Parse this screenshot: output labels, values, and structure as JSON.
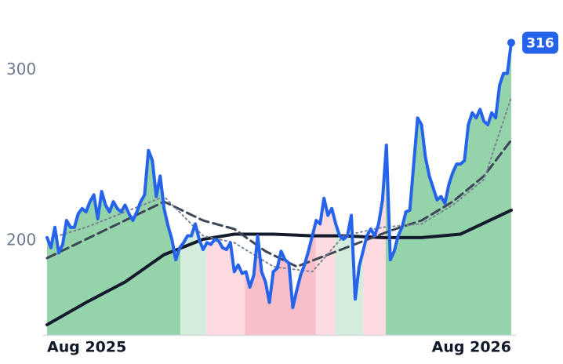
{
  "chart_data": {
    "type": "line",
    "xlim": [
      0,
      119
    ],
    "xticks": [
      {
        "value": 0,
        "label": "Aug 2025"
      },
      {
        "value": 119,
        "label": "Aug 2026"
      }
    ],
    "ylim": [
      145,
      341
    ],
    "yticks": [
      200,
      300
    ],
    "series": [
      {
        "color": "#2563eb",
        "width": 4,
        "dash": "none",
        "x": [
          0,
          1,
          2,
          3,
          4,
          5,
          6,
          7,
          8,
          9,
          10,
          11,
          12,
          13,
          14,
          15,
          16,
          17,
          18,
          19,
          20,
          21,
          22,
          23,
          24,
          25,
          26,
          27,
          28,
          29,
          30,
          31,
          32,
          33,
          34,
          35,
          36,
          37,
          38,
          39,
          40,
          41,
          42,
          43,
          44,
          45,
          46,
          47,
          48,
          49,
          50,
          51,
          52,
          53,
          54,
          55,
          56,
          57,
          58,
          59,
          60,
          61,
          62,
          63,
          64,
          65,
          66,
          67,
          68,
          69,
          70,
          71,
          72,
          73,
          74,
          75,
          76,
          77,
          78,
          79,
          80,
          81,
          82,
          83,
          84,
          85,
          86,
          87,
          88,
          89,
          90,
          91,
          92,
          93,
          94,
          95,
          96,
          97,
          98,
          99,
          100,
          101,
          102,
          103,
          104,
          105,
          106,
          107,
          108,
          109,
          110,
          111,
          112,
          113,
          114,
          115,
          116,
          117,
          118,
          119
        ],
        "values": [
          202,
          196,
          208,
          193,
          198,
          212,
          208,
          208,
          216,
          219,
          217,
          223,
          227,
          213,
          229,
          221,
          217,
          223,
          219,
          217,
          221,
          216,
          212,
          217,
          223,
          227,
          253,
          247,
          226,
          238,
          219,
          209,
          201,
          189,
          196,
          199,
          203,
          203,
          210,
          201,
          195,
          199,
          198,
          201,
          200,
          196,
          195,
          199,
          182,
          186,
          181,
          182,
          173,
          180,
          203,
          182,
          176,
          164,
          182,
          184,
          194,
          189,
          187,
          161,
          171,
          180,
          186,
          194,
          203,
          212,
          210,
          225,
          215,
          219,
          210,
          203,
          201,
          203,
          215,
          166,
          185,
          194,
          203,
          207,
          203,
          210,
          224,
          256,
          189,
          194,
          203,
          208,
          217,
          218,
          245,
          272,
          268,
          249,
          238,
          231,
          224,
          226,
          222,
          233,
          240,
          245,
          245,
          247,
          268,
          275,
          272,
          277,
          270,
          268,
          275,
          272,
          291,
          298,
          298,
          316
        ]
      },
      {
        "color": "#7b8494",
        "width": 2,
        "dash": "2 4",
        "x": [
          0,
          10,
          20,
          30,
          40,
          48,
          58,
          68,
          76,
          86,
          96,
          104,
          112,
          119
        ],
        "values": [
          201,
          208,
          217,
          226,
          203,
          199,
          185,
          182,
          203,
          208,
          210,
          221,
          236,
          284
        ]
      },
      {
        "color": "#3d4656",
        "width": 3,
        "dash": "12 6",
        "x": [
          0,
          10,
          20,
          30,
          40,
          48,
          56,
          64,
          72,
          80,
          88,
          96,
          104,
          112,
          119
        ],
        "values": [
          190,
          201,
          212,
          223,
          212,
          207,
          194,
          185,
          192,
          199,
          206,
          212,
          223,
          238,
          259
        ]
      },
      {
        "color": "#141b2d",
        "width": 4,
        "dash": "none",
        "x": [
          0,
          10,
          20,
          30,
          40,
          48,
          58,
          68,
          76,
          86,
          96,
          106,
          119
        ],
        "values": [
          151,
          164,
          176,
          192,
          201,
          204,
          204,
          203,
          203,
          202,
          202,
          204,
          218
        ]
      }
    ],
    "regions": [
      {
        "x": [
          0,
          34.2
        ],
        "color": "#95d3ab"
      },
      {
        "x": [
          34.2,
          40.8
        ],
        "color": "#d3ecdb"
      },
      {
        "x": [
          40.8,
          50.7
        ],
        "color": "#fddbe1"
      },
      {
        "x": [
          50.7,
          68.9
        ],
        "color": "#f9bfc9"
      },
      {
        "x": [
          68.9,
          73.8
        ],
        "color": "#fddbe1"
      },
      {
        "x": [
          73.8,
          81
        ],
        "color": "#d3ecdb"
      },
      {
        "x": [
          81,
          86.8
        ],
        "color": "#fddbe1"
      },
      {
        "x": [
          86.8,
          119
        ],
        "color": "#95d3ab"
      }
    ]
  }
}
